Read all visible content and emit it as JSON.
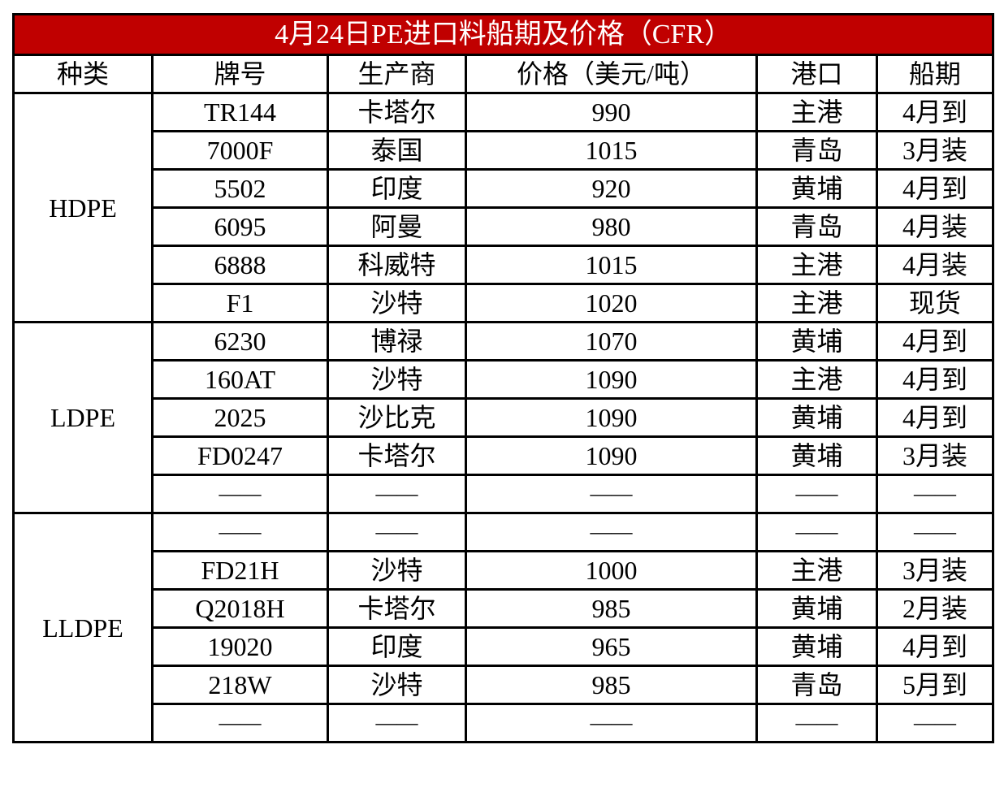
{
  "title": "4月24日PE进口料船期及价格（CFR）",
  "colors": {
    "title_bg": "#C00000",
    "title_text": "#FFFFFF"
  },
  "headers": [
    "种类",
    "牌号",
    "生产商",
    "价格（美元/吨）",
    "港口",
    "船期"
  ],
  "groups": [
    {
      "category": "HDPE",
      "rows": [
        [
          "TR144",
          "卡塔尔",
          "990",
          "主港",
          "4月到"
        ],
        [
          "7000F",
          "泰国",
          "1015",
          "青岛",
          "3月装"
        ],
        [
          "5502",
          "印度",
          "920",
          "黄埔",
          "4月到"
        ],
        [
          "6095",
          "阿曼",
          "980",
          "青岛",
          "4月装"
        ],
        [
          "6888",
          "科威特",
          "1015",
          "主港",
          "4月装"
        ],
        [
          "F1",
          "沙特",
          "1020",
          "主港",
          "现货"
        ]
      ]
    },
    {
      "category": "LDPE",
      "rows": [
        [
          "6230",
          "博禄",
          "1070",
          "黄埔",
          "4月到"
        ],
        [
          "160AT",
          "沙特",
          "1090",
          "主港",
          "4月到"
        ],
        [
          "2025",
          "沙比克",
          "1090",
          "黄埔",
          "4月到"
        ],
        [
          "FD0247",
          "卡塔尔",
          "1090",
          "黄埔",
          "3月装"
        ],
        [
          "——",
          "——",
          "——",
          "——",
          "——"
        ]
      ]
    },
    {
      "category": "LLDPE",
      "rows": [
        [
          "——",
          "——",
          "——",
          "——",
          "——"
        ],
        [
          "FD21H",
          "沙特",
          "1000",
          "主港",
          "3月装"
        ],
        [
          "Q2018H",
          "卡塔尔",
          "985",
          "黄埔",
          "2月装"
        ],
        [
          "19020",
          "印度",
          "965",
          "黄埔",
          "4月到"
        ],
        [
          "218W",
          "沙特",
          "985",
          "青岛",
          "5月到"
        ],
        [
          "——",
          "——",
          "——",
          "——",
          "——"
        ]
      ]
    }
  ]
}
